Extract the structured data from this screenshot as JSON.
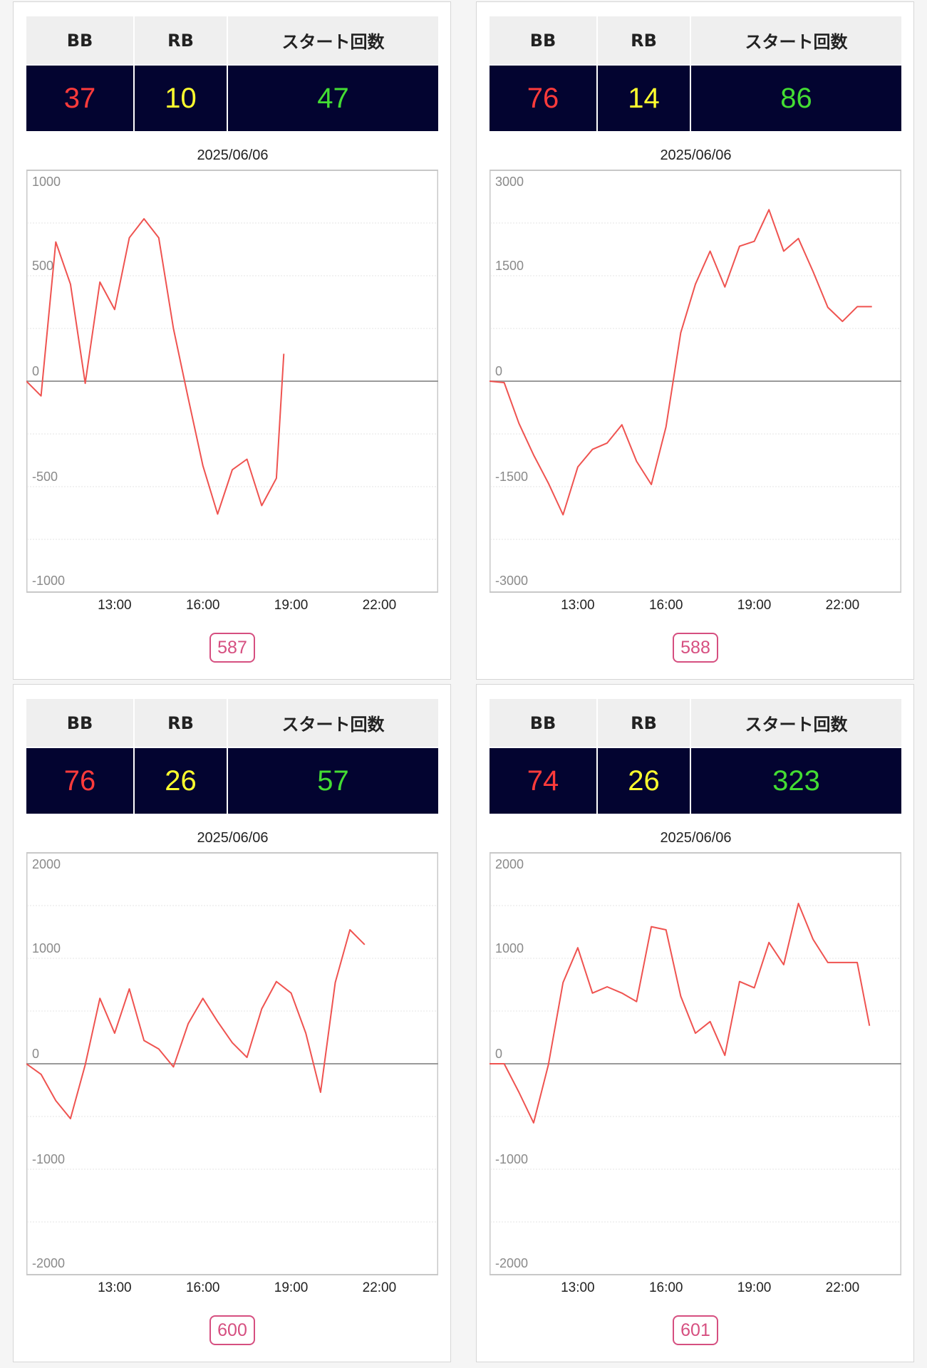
{
  "headers": {
    "bb": "BB",
    "rb": "RB",
    "start": "スタート回数"
  },
  "colors": {
    "bb": "#ff3b3b",
    "rb": "#ffff2e",
    "start": "#44dd33",
    "line": "#ef5350",
    "badge": "#d64f80",
    "stats_bg": "#030430"
  },
  "cards": [
    {
      "bb": "37",
      "rb": "10",
      "start": "47",
      "date": "2025/06/06",
      "machine": "587"
    },
    {
      "bb": "76",
      "rb": "14",
      "start": "86",
      "date": "2025/06/06",
      "machine": "588"
    },
    {
      "bb": "76",
      "rb": "26",
      "start": "57",
      "date": "2025/06/06",
      "machine": "600"
    },
    {
      "bb": "74",
      "rb": "26",
      "start": "323",
      "date": "2025/06/06",
      "machine": "601"
    }
  ],
  "chart_data": [
    {
      "type": "line",
      "xlabel": "",
      "ylabel": "",
      "xticks": [
        "13:00",
        "16:00",
        "19:00",
        "22:00"
      ],
      "xlim": [
        "10:00",
        "24:00"
      ],
      "yticks": [
        1000,
        500,
        0,
        -500,
        -1000
      ],
      "ylim": [
        -1000,
        1000
      ],
      "grid": true,
      "series": [
        {
          "x": [
            "10:00",
            "10:30",
            "11:00",
            "11:30",
            "12:00",
            "12:30",
            "13:00",
            "13:30",
            "14:00",
            "14:30",
            "15:00",
            "15:30",
            "16:00",
            "16:30",
            "17:00",
            "17:30",
            "18:00",
            "18:30",
            "18:45"
          ],
          "values": [
            0,
            -70,
            660,
            460,
            -10,
            470,
            340,
            680,
            770,
            680,
            250,
            -80,
            -400,
            -630,
            -420,
            -370,
            -590,
            -460,
            130
          ]
        }
      ]
    },
    {
      "type": "line",
      "xlabel": "",
      "ylabel": "",
      "xticks": [
        "13:00",
        "16:00",
        "19:00",
        "22:00"
      ],
      "xlim": [
        "10:00",
        "24:00"
      ],
      "yticks": [
        3000,
        1500,
        0,
        -1500,
        -3000
      ],
      "ylim": [
        -3000,
        3000
      ],
      "grid": true,
      "series": [
        {
          "x": [
            "10:00",
            "10:30",
            "11:00",
            "11:30",
            "12:00",
            "12:30",
            "13:00",
            "13:30",
            "14:00",
            "14:30",
            "15:00",
            "15:30",
            "16:00",
            "16:30",
            "17:00",
            "17:30",
            "18:00",
            "18:30",
            "19:00",
            "19:30",
            "20:00",
            "20:30",
            "21:00",
            "21:30",
            "22:00",
            "22:30",
            "23:00"
          ],
          "values": [
            0,
            -20,
            -600,
            -1050,
            -1450,
            -1900,
            -1220,
            -970,
            -880,
            -620,
            -1140,
            -1470,
            -650,
            690,
            1380,
            1850,
            1340,
            1920,
            1990,
            2440,
            1850,
            2030,
            1560,
            1050,
            850,
            1060,
            1060
          ]
        }
      ]
    },
    {
      "type": "line",
      "xlabel": "",
      "ylabel": "",
      "xticks": [
        "13:00",
        "16:00",
        "19:00",
        "22:00"
      ],
      "xlim": [
        "10:00",
        "24:00"
      ],
      "yticks": [
        2000,
        1000,
        0,
        -1000,
        -2000
      ],
      "ylim": [
        -2000,
        2000
      ],
      "grid": true,
      "series": [
        {
          "x": [
            "10:00",
            "10:30",
            "11:00",
            "11:30",
            "12:00",
            "12:30",
            "13:00",
            "13:30",
            "14:00",
            "14:30",
            "15:00",
            "15:30",
            "16:00",
            "16:30",
            "17:00",
            "17:30",
            "18:00",
            "18:30",
            "19:00",
            "19:30",
            "20:00",
            "20:30",
            "21:00",
            "21:30"
          ],
          "values": [
            0,
            -100,
            -350,
            -520,
            -10,
            620,
            290,
            710,
            220,
            140,
            -30,
            380,
            620,
            400,
            200,
            60,
            520,
            780,
            670,
            290,
            -270,
            770,
            1270,
            1130
          ]
        }
      ]
    },
    {
      "type": "line",
      "xlabel": "",
      "ylabel": "",
      "xticks": [
        "13:00",
        "16:00",
        "19:00",
        "22:00"
      ],
      "xlim": [
        "10:00",
        "24:00"
      ],
      "yticks": [
        2000,
        1000,
        0,
        -1000,
        -2000
      ],
      "ylim": [
        -2000,
        2000
      ],
      "grid": true,
      "series": [
        {
          "x": [
            "10:00",
            "10:30",
            "11:00",
            "11:30",
            "12:00",
            "12:30",
            "13:00",
            "13:30",
            "14:00",
            "14:30",
            "15:00",
            "15:30",
            "16:00",
            "16:30",
            "17:00",
            "17:30",
            "18:00",
            "18:30",
            "19:00",
            "19:30",
            "20:00",
            "20:30",
            "21:00",
            "21:30",
            "22:00",
            "22:30",
            "22:55"
          ],
          "values": [
            0,
            0,
            -270,
            -560,
            -10,
            770,
            1100,
            670,
            730,
            670,
            590,
            1300,
            1270,
            640,
            290,
            400,
            80,
            780,
            720,
            1150,
            940,
            1520,
            1180,
            960,
            960,
            960,
            360
          ]
        }
      ]
    }
  ]
}
